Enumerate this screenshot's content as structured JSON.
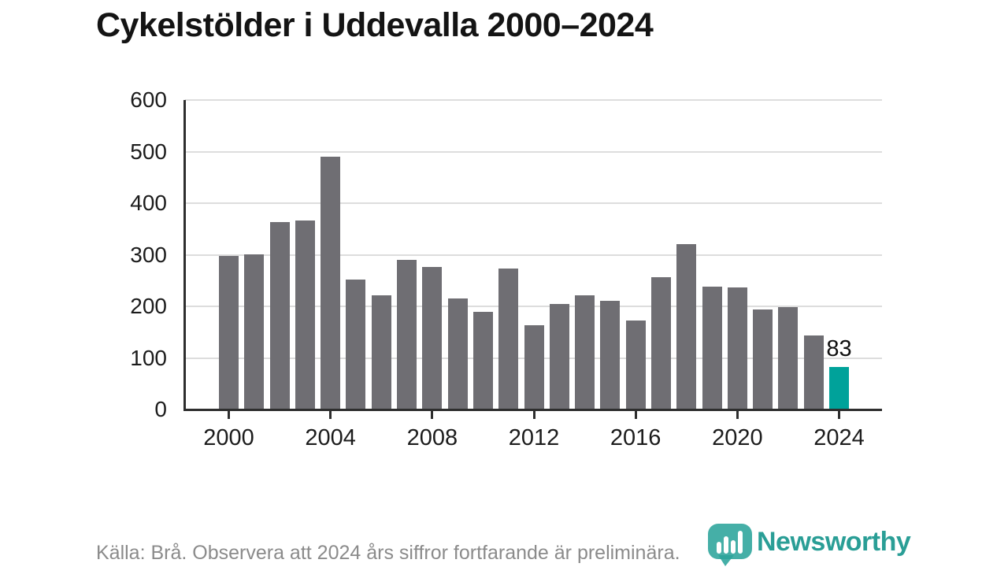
{
  "title": "Cykelstölder i Uddevalla 2000–2024",
  "footer": {
    "source_note": "Källa: Brå. Observera att 2024 års siffror fortfarande är preliminära."
  },
  "branding": {
    "name": "Newsworthy",
    "icon": "bar-chart-badge-icon",
    "color": "#2a9e96"
  },
  "colors": {
    "bar": "#6f6e73",
    "highlight": "#00a29a",
    "axis": "#2e2e2e",
    "grid": "#dddddd",
    "tick_label": "#1c1c1c",
    "title_text": "#141414",
    "footer_text": "#8b8b8b"
  },
  "chart_data": {
    "type": "bar",
    "title": "Cykelstölder i Uddevalla 2000–2024",
    "x": [
      2000,
      2001,
      2002,
      2003,
      2004,
      2005,
      2006,
      2007,
      2008,
      2009,
      2010,
      2011,
      2012,
      2013,
      2014,
      2015,
      2016,
      2017,
      2018,
      2019,
      2020,
      2021,
      2022,
      2023,
      2024
    ],
    "values": [
      298,
      300,
      364,
      367,
      490,
      252,
      221,
      290,
      277,
      216,
      190,
      273,
      164,
      204,
      221,
      211,
      173,
      256,
      321,
      238,
      236,
      194,
      198,
      143,
      83
    ],
    "highlight_index": 24,
    "highlight_label": "83",
    "xlabel": "",
    "ylabel": "",
    "ylim": [
      0,
      600
    ],
    "yticks": [
      0,
      100,
      200,
      300,
      400,
      500,
      600
    ],
    "xticks": [
      2000,
      2004,
      2008,
      2012,
      2016,
      2020,
      2024
    ],
    "grid": "horizontal",
    "legend": "none"
  }
}
